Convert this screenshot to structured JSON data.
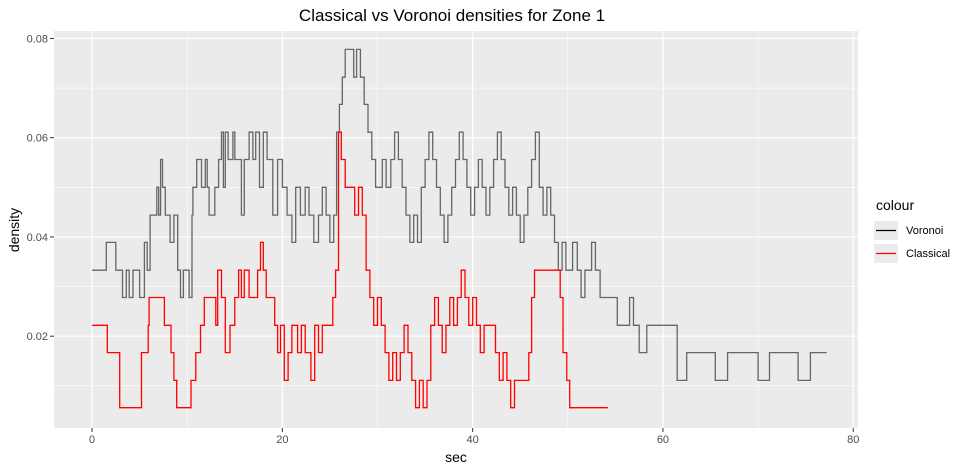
{
  "chart_data": {
    "type": "line",
    "title": "Classical vs Voronoi densities for Zone 1",
    "xlabel": "sec",
    "ylabel": "density",
    "xlim": [
      -4,
      80.5
    ],
    "ylim": [
      0.0015,
      0.0815
    ],
    "x_ticks": [
      0,
      20,
      40,
      60,
      80
    ],
    "y_ticks": [
      0.02,
      0.04,
      0.06,
      0.08
    ],
    "x_tick_labels": [
      "0",
      "20",
      "40",
      "60",
      "80"
    ],
    "y_tick_labels": [
      "0.02",
      "0.04",
      "0.06",
      "0.08"
    ],
    "grid": true,
    "legend": {
      "title": "colour",
      "position": "right",
      "entries": [
        {
          "label": "Voronoi",
          "color": "#000000"
        },
        {
          "label": "Classical",
          "color": "#ff0000"
        }
      ]
    },
    "series": [
      {
        "name": "Voronoi",
        "color": "#666666",
        "step": true,
        "points": [
          [
            0,
            0.0333
          ],
          [
            1.5,
            0.0389
          ],
          [
            2.5,
            0.0333
          ],
          [
            3.2,
            0.0278
          ],
          [
            3.6,
            0.0333
          ],
          [
            3.9,
            0.0278
          ],
          [
            4.3,
            0.0333
          ],
          [
            5.0,
            0.0278
          ],
          [
            5.5,
            0.0389
          ],
          [
            5.8,
            0.0333
          ],
          [
            6.1,
            0.0444
          ],
          [
            6.8,
            0.05
          ],
          [
            7.0,
            0.0444
          ],
          [
            7.2,
            0.0556
          ],
          [
            7.4,
            0.05
          ],
          [
            7.7,
            0.0444
          ],
          [
            8.2,
            0.0389
          ],
          [
            8.6,
            0.0444
          ],
          [
            9.0,
            0.0333
          ],
          [
            9.3,
            0.0278
          ],
          [
            9.6,
            0.0333
          ],
          [
            10.2,
            0.0278
          ],
          [
            10.5,
            0.0333
          ],
          [
            10.4,
            0.0333
          ],
          [
            10.5,
            0.0444
          ],
          [
            10.6,
            0.05
          ],
          [
            11.0,
            0.0556
          ],
          [
            11.5,
            0.05
          ],
          [
            11.9,
            0.0556
          ],
          [
            12.1,
            0.05
          ],
          [
            12.3,
            0.0444
          ],
          [
            12.9,
            0.05
          ],
          [
            13.3,
            0.0556
          ],
          [
            13.6,
            0.0611
          ],
          [
            13.8,
            0.05
          ],
          [
            14.0,
            0.0611
          ],
          [
            14.3,
            0.0556
          ],
          [
            14.8,
            0.0611
          ],
          [
            15.0,
            0.0556
          ],
          [
            15.7,
            0.0444
          ],
          [
            16.0,
            0.0556
          ],
          [
            16.5,
            0.0611
          ],
          [
            16.9,
            0.0556
          ],
          [
            17.2,
            0.0611
          ],
          [
            17.6,
            0.05
          ],
          [
            18.0,
            0.0611
          ],
          [
            18.4,
            0.0556
          ],
          [
            19.0,
            0.0444
          ],
          [
            19.5,
            0.0556
          ],
          [
            20.0,
            0.05
          ],
          [
            20.5,
            0.0444
          ],
          [
            21.0,
            0.0389
          ],
          [
            21.4,
            0.05
          ],
          [
            21.9,
            0.0444
          ],
          [
            22.4,
            0.05
          ],
          [
            22.8,
            0.0444
          ],
          [
            23.3,
            0.0389
          ],
          [
            23.8,
            0.0444
          ],
          [
            24.2,
            0.05
          ],
          [
            24.6,
            0.0444
          ],
          [
            25.0,
            0.0389
          ],
          [
            25.4,
            0.0444
          ],
          [
            25.7,
            0.0611
          ],
          [
            26.0,
            0.0667
          ],
          [
            26.3,
            0.0722
          ],
          [
            26.6,
            0.0778
          ],
          [
            27.5,
            0.0722
          ],
          [
            27.8,
            0.0778
          ],
          [
            28.2,
            0.0722
          ],
          [
            28.6,
            0.0667
          ],
          [
            29.0,
            0.0611
          ],
          [
            29.4,
            0.0556
          ],
          [
            29.8,
            0.05
          ],
          [
            30.5,
            0.0556
          ],
          [
            30.9,
            0.05
          ],
          [
            31.4,
            0.0556
          ],
          [
            31.8,
            0.0611
          ],
          [
            32.2,
            0.0556
          ],
          [
            32.6,
            0.05
          ],
          [
            33.0,
            0.0444
          ],
          [
            33.4,
            0.0389
          ],
          [
            33.8,
            0.0444
          ],
          [
            34.2,
            0.0389
          ],
          [
            34.6,
            0.05
          ],
          [
            35.0,
            0.0556
          ],
          [
            35.4,
            0.0611
          ],
          [
            35.8,
            0.0556
          ],
          [
            36.2,
            0.05
          ],
          [
            36.6,
            0.0444
          ],
          [
            37.0,
            0.0389
          ],
          [
            37.4,
            0.0444
          ],
          [
            37.8,
            0.05
          ],
          [
            38.2,
            0.0556
          ],
          [
            38.6,
            0.0611
          ],
          [
            39.0,
            0.0556
          ],
          [
            39.4,
            0.05
          ],
          [
            39.8,
            0.0444
          ],
          [
            40.2,
            0.05
          ],
          [
            40.6,
            0.0556
          ],
          [
            41.0,
            0.05
          ],
          [
            41.4,
            0.0444
          ],
          [
            41.8,
            0.05
          ],
          [
            42.2,
            0.0556
          ],
          [
            42.6,
            0.0611
          ],
          [
            43.0,
            0.0556
          ],
          [
            43.4,
            0.05
          ],
          [
            43.8,
            0.0444
          ],
          [
            44.2,
            0.05
          ],
          [
            44.6,
            0.0444
          ],
          [
            45.0,
            0.0389
          ],
          [
            45.4,
            0.0444
          ],
          [
            45.8,
            0.05
          ],
          [
            46.2,
            0.0556
          ],
          [
            46.6,
            0.0611
          ],
          [
            47.0,
            0.05
          ],
          [
            47.4,
            0.0444
          ],
          [
            47.8,
            0.05
          ],
          [
            48.2,
            0.0444
          ],
          [
            48.6,
            0.0389
          ],
          [
            49.0,
            0.0333
          ],
          [
            49.4,
            0.0389
          ],
          [
            49.8,
            0.0333
          ],
          [
            50.5,
            0.0389
          ],
          [
            51.0,
            0.0333
          ],
          [
            51.4,
            0.0278
          ],
          [
            51.8,
            0.0333
          ],
          [
            52.5,
            0.0389
          ],
          [
            52.9,
            0.0333
          ],
          [
            53.4,
            0.0278
          ],
          [
            54.2,
            0.0278
          ],
          [
            54.7,
            0.0278
          ],
          [
            55.2,
            0.0222
          ],
          [
            56.0,
            0.0222
          ],
          [
            56.5,
            0.0278
          ],
          [
            56.9,
            0.0222
          ],
          [
            57.5,
            0.0167
          ],
          [
            58.3,
            0.0222
          ],
          [
            61.3,
            0.0222
          ],
          [
            61.5,
            0.0111
          ],
          [
            62.5,
            0.0167
          ],
          [
            65.5,
            0.0111
          ],
          [
            66.8,
            0.0167
          ],
          [
            70.0,
            0.0111
          ],
          [
            71.2,
            0.0167
          ],
          [
            74.2,
            0.0111
          ],
          [
            75.5,
            0.0167
          ],
          [
            77.2,
            0.0167
          ]
        ]
      },
      {
        "name": "Classical",
        "color": "#ff0000",
        "step": true,
        "points": [
          [
            0,
            0.0222
          ],
          [
            1.6,
            0.0167
          ],
          [
            2.9,
            0.0056
          ],
          [
            5.2,
            0.0167
          ],
          [
            5.9,
            0.0222
          ],
          [
            6.0,
            0.0278
          ],
          [
            7.5,
            0.0278
          ],
          [
            7.6,
            0.0222
          ],
          [
            8.3,
            0.0167
          ],
          [
            8.6,
            0.0111
          ],
          [
            9.0,
            0.0111
          ],
          [
            8.6,
            0.0111
          ],
          [
            9.0,
            0.0111
          ],
          [
            8.9,
            0.0056
          ],
          [
            10.4,
            0.0111
          ],
          [
            10.9,
            0.0167
          ],
          [
            11.4,
            0.0222
          ],
          [
            11.8,
            0.0278
          ],
          [
            12.5,
            0.0278
          ],
          [
            13.0,
            0.0222
          ],
          [
            13.2,
            0.0333
          ],
          [
            13.6,
            0.0278
          ],
          [
            14.0,
            0.0167
          ],
          [
            14.5,
            0.0222
          ],
          [
            15.0,
            0.0278
          ],
          [
            15.4,
            0.0333
          ],
          [
            15.7,
            0.0278
          ],
          [
            16.0,
            0.0333
          ],
          [
            16.5,
            0.0278
          ],
          [
            17.0,
            0.0278
          ],
          [
            17.4,
            0.0333
          ],
          [
            17.7,
            0.0389
          ],
          [
            18.0,
            0.0333
          ],
          [
            18.3,
            0.0278
          ],
          [
            18.8,
            0.0278
          ],
          [
            19.2,
            0.0222
          ],
          [
            19.5,
            0.0167
          ],
          [
            19.8,
            0.0222
          ],
          [
            20.2,
            0.0111
          ],
          [
            20.6,
            0.0167
          ],
          [
            21.0,
            0.0222
          ],
          [
            21.6,
            0.0167
          ],
          [
            22.0,
            0.0222
          ],
          [
            22.4,
            0.0167
          ],
          [
            23.0,
            0.0111
          ],
          [
            23.4,
            0.0222
          ],
          [
            23.8,
            0.0167
          ],
          [
            24.2,
            0.0222
          ],
          [
            25.0,
            0.0222
          ],
          [
            25.3,
            0.0278
          ],
          [
            25.6,
            0.0333
          ],
          [
            25.9,
            0.0611
          ],
          [
            26.2,
            0.0556
          ],
          [
            26.6,
            0.05
          ],
          [
            27.2,
            0.05
          ],
          [
            27.6,
            0.0444
          ],
          [
            28.0,
            0.05
          ],
          [
            28.4,
            0.0444
          ],
          [
            28.8,
            0.0333
          ],
          [
            29.2,
            0.0278
          ],
          [
            29.6,
            0.0222
          ],
          [
            30.0,
            0.0278
          ],
          [
            30.4,
            0.0222
          ],
          [
            30.8,
            0.0167
          ],
          [
            31.2,
            0.0111
          ],
          [
            31.6,
            0.0167
          ],
          [
            32.0,
            0.0111
          ],
          [
            32.4,
            0.0167
          ],
          [
            32.8,
            0.0222
          ],
          [
            33.2,
            0.0167
          ],
          [
            33.6,
            0.0111
          ],
          [
            34.0,
            0.0056
          ],
          [
            34.4,
            0.0111
          ],
          [
            34.8,
            0.0056
          ],
          [
            35.2,
            0.0111
          ],
          [
            35.6,
            0.0222
          ],
          [
            36.0,
            0.0278
          ],
          [
            36.4,
            0.0222
          ],
          [
            36.8,
            0.0167
          ],
          [
            37.2,
            0.0222
          ],
          [
            37.6,
            0.0278
          ],
          [
            38.0,
            0.0222
          ],
          [
            38.4,
            0.0278
          ],
          [
            38.8,
            0.0333
          ],
          [
            39.2,
            0.0278
          ],
          [
            39.6,
            0.0222
          ],
          [
            40.0,
            0.0278
          ],
          [
            40.4,
            0.0222
          ],
          [
            40.8,
            0.0167
          ],
          [
            41.2,
            0.0222
          ],
          [
            42.0,
            0.0222
          ],
          [
            42.4,
            0.0167
          ],
          [
            42.8,
            0.0111
          ],
          [
            43.2,
            0.0167
          ],
          [
            43.6,
            0.0111
          ],
          [
            44.0,
            0.0056
          ],
          [
            44.4,
            0.0111
          ],
          [
            45.5,
            0.0111
          ],
          [
            45.9,
            0.0167
          ],
          [
            46.2,
            0.0278
          ],
          [
            46.5,
            0.0333
          ],
          [
            49.0,
            0.0333
          ],
          [
            49.2,
            0.0278
          ],
          [
            49.5,
            0.0167
          ],
          [
            49.9,
            0.0111
          ],
          [
            50.2,
            0.0056
          ],
          [
            54.2,
            0.0056
          ]
        ]
      }
    ]
  }
}
